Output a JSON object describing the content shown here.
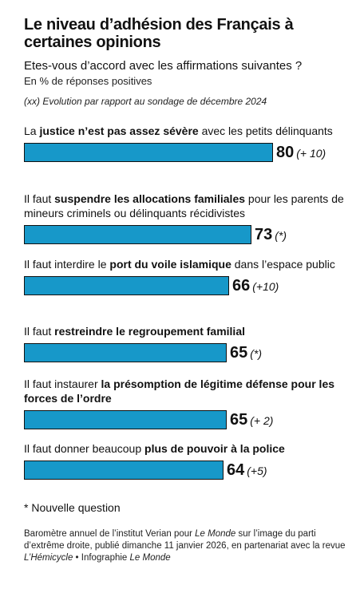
{
  "title": "Le niveau d’adhésion des Français à certaines opinions",
  "subtitle": "Etes-vous d’accord avec les affirmations suivantes ?",
  "unit": "En % de réponses positives",
  "evolution_note": "(xx) Evolution par rapport au sondage de décembre 2024",
  "new_question_note": "* Nouvelle question",
  "source": {
    "p1": "Baromètre annuel de l’institut Verian pour ",
    "i1": "Le Monde",
    "p2": " sur l’image du parti d’extrême droite, publié dimanche 11 janvier 2026, en partenariat avec la revue ",
    "i2": "L’Hémicycle",
    "p3": " • Infographie ",
    "i3": "Le Monde"
  },
  "chart_data": {
    "type": "bar",
    "orientation": "horizontal",
    "xlim": [
      0,
      100
    ],
    "grid": false,
    "bar_color": "#1798c9",
    "items": [
      {
        "segments": [
          [
            "La ",
            false
          ],
          [
            "justice n’est pas assez sévère",
            true
          ],
          [
            " avec les petits délinquants",
            false
          ]
        ],
        "value": 80,
        "evolution": "(+ 10)"
      },
      {
        "segments": [
          [
            "Il faut ",
            false
          ],
          [
            "suspendre les allocations familiales",
            true
          ],
          [
            " pour les parents de mineurs criminels ou délinquants récidivistes",
            false
          ]
        ],
        "value": 73,
        "evolution": "(*)"
      },
      {
        "segments": [
          [
            "Il faut interdire le ",
            false
          ],
          [
            "port du voile islamique",
            true
          ],
          [
            " dans l’espace public",
            false
          ]
        ],
        "value": 66,
        "evolution": "(+10)"
      },
      {
        "segments": [
          [
            "Il faut ",
            false
          ],
          [
            "restreindre le regroupement familial",
            true
          ]
        ],
        "value": 65,
        "evolution": "(*)"
      },
      {
        "segments": [
          [
            "Il faut instaurer ",
            false
          ],
          [
            "la présomption de légitime défense pour les forces de l’ordre",
            true
          ]
        ],
        "value": 65,
        "evolution": "(+ 2)"
      },
      {
        "segments": [
          [
            "Il faut donner beaucoup ",
            false
          ],
          [
            "plus de pouvoir à la police",
            true
          ]
        ],
        "value": 64,
        "evolution": "(+5)"
      }
    ]
  }
}
